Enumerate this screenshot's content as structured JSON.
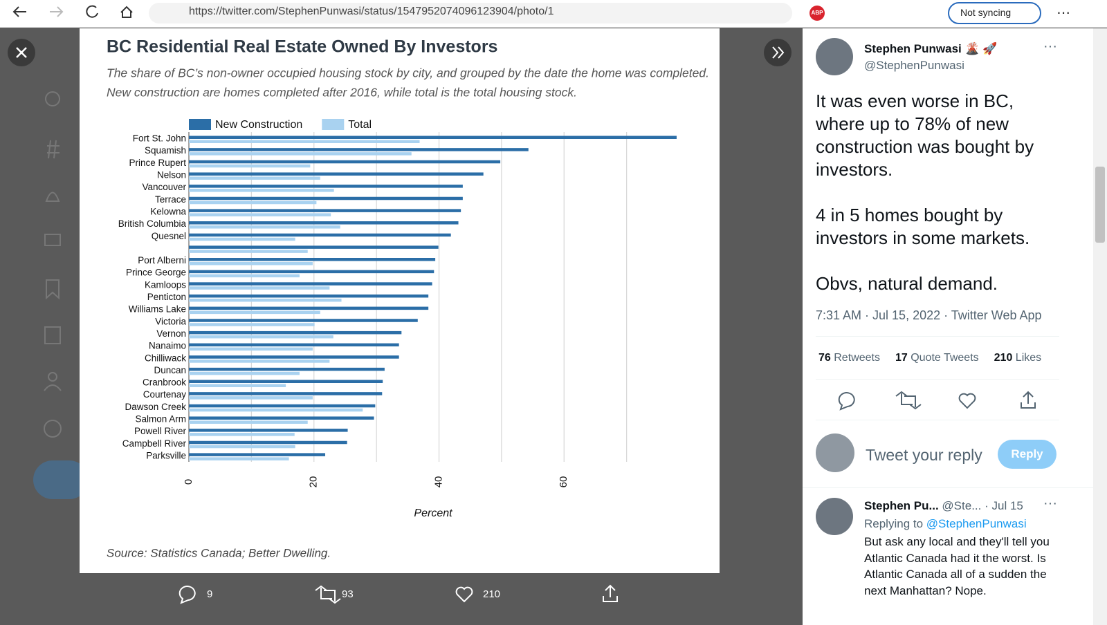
{
  "browser": {
    "url": "https://twitter.com/StephenPunwasi/status/1547952074096123904/photo/1",
    "adblock": "ABP",
    "sync": "Not syncing"
  },
  "chart_data": {
    "type": "bar",
    "orientation": "horizontal",
    "title": "BC Residential Real Estate Owned By Investors",
    "subtitle": [
      "The share of BC’s non-owner occupied housing stock by city, and grouped by the date the home was completed.",
      "New construction are homes completed after 2016, while total is the total housing stock."
    ],
    "categories": [
      "Fort St. John",
      "Squamish",
      "Prince Rupert",
      "Nelson",
      "Vancouver",
      "Terrace",
      "Kelowna",
      "British Columbia",
      "Quesnel",
      null,
      "Port Alberni",
      "Prince George",
      "Kamloops",
      "Penticton",
      "Williams Lake",
      "Victoria",
      "Vernon",
      "Nanaimo",
      "Chilliwack",
      "Duncan",
      "Cranbrook",
      "Courtenay",
      "Dawson Creek",
      "Salmon Arm",
      "Powell River",
      "Campbell River",
      "Parksville"
    ],
    "series": [
      {
        "name": "New Construction",
        "color": "#2b6ea7",
        "values": [
          78,
          54.3,
          49.8,
          47.1,
          43.8,
          43.8,
          43.5,
          43.1,
          41.9,
          39.9,
          39.4,
          39.2,
          38.9,
          38.3,
          38.3,
          36.6,
          34.0,
          33.6,
          33.6,
          31.3,
          31.0,
          30.9,
          29.8,
          29.6,
          25.4,
          25.3,
          21.8
        ]
      },
      {
        "name": "Total",
        "color": "#a9d2f0",
        "values": [
          36.9,
          35.6,
          19.4,
          21.0,
          23.2,
          20.4,
          22.7,
          24.2,
          17.0,
          19.0,
          19.8,
          17.7,
          22.5,
          24.4,
          21.0,
          20.1,
          23.1,
          19.8,
          22.5,
          17.7,
          15.5,
          19.8,
          27.8,
          19.0,
          16.9,
          17.0,
          16.0
        ]
      }
    ],
    "xlim": [
      0,
      79
    ],
    "xticks": [
      0,
      20,
      40,
      60
    ],
    "xgrid": [
      0,
      10,
      20,
      30,
      40,
      50,
      60,
      70
    ],
    "xlabel": "Percent",
    "source": "Source: Statistics Canada; Better Dwelling."
  },
  "media_actions": {
    "replies": 9,
    "retweets": 93,
    "likes": 210
  },
  "tweet": {
    "name": "Stephen Punwasi",
    "emoji": "🌋 🚀",
    "handle": "@StephenPunwasi",
    "paragraphs": [
      "It was even worse in BC, where up to 78% of new construction was bought by investors.",
      "4 in 5 homes bought by investors in some markets.",
      "Obvs, natural demand."
    ],
    "timestamp": "7:31 AM · Jul 15, 2022 · Twitter Web App",
    "stats": [
      {
        "count": 76,
        "label": "Retweets"
      },
      {
        "count": 17,
        "label": "Quote Tweets"
      },
      {
        "count": 210,
        "label": "Likes"
      }
    ],
    "reply_placeholder": "Tweet your reply",
    "reply_button": "Reply"
  },
  "reply": {
    "name": "Stephen Pu...",
    "handle": "@Ste...",
    "date": "· Jul 15",
    "replying_to": "Replying to",
    "replying_handle": "@StephenPunwasi",
    "text": "But ask any local and they'll tell you Atlantic Canada had it the worst. Is Atlantic Canada all of a sudden the next Manhattan? Nope."
  }
}
